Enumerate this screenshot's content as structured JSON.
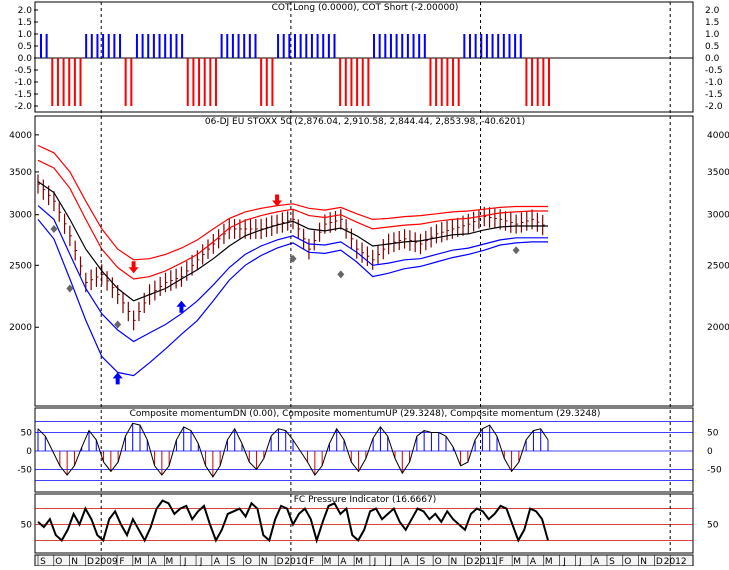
{
  "chart_data": [
    {
      "type": "bar",
      "title": "COT Long (0.0000), COT Short (-2.00000)",
      "ylim": [
        -2,
        2
      ],
      "yticks": [
        "2.0",
        "1.5",
        "1.0",
        "0.5",
        "0.0",
        "-0.5",
        "-1.0",
        "-1.5",
        "-2.0"
      ],
      "series": [
        {
          "name": "COT Long",
          "color": "#0000ff",
          "values": [
            1,
            1,
            0,
            0,
            0,
            0,
            0,
            0,
            1,
            1,
            1,
            1,
            1,
            1,
            1,
            0,
            0,
            1,
            1,
            1,
            1,
            1,
            1,
            1,
            1,
            1,
            0,
            0,
            0,
            0,
            0,
            0,
            1,
            1,
            1,
            1,
            1,
            1,
            1,
            0,
            0,
            0,
            1,
            1,
            1,
            1,
            1,
            1,
            1,
            1,
            1,
            1,
            1,
            0,
            0,
            0,
            0,
            0,
            0,
            1,
            1,
            1,
            1,
            1,
            1,
            1,
            1,
            1,
            1,
            0,
            0,
            0,
            0,
            0,
            0,
            1,
            1,
            1,
            1,
            1,
            1,
            1,
            1,
            1,
            1,
            1,
            0,
            0,
            0,
            0,
            0
          ]
        },
        {
          "name": "COT Short",
          "color": "#ff0000",
          "values": [
            0,
            0,
            -2,
            -2,
            -2,
            -2,
            -2,
            -2,
            0,
            0,
            0,
            0,
            0,
            0,
            0,
            -2,
            -2,
            0,
            0,
            0,
            0,
            0,
            0,
            0,
            0,
            0,
            -2,
            -2,
            -2,
            -2,
            -2,
            -2,
            0,
            0,
            0,
            0,
            0,
            0,
            0,
            -2,
            -2,
            -2,
            0,
            0,
            0,
            0,
            0,
            0,
            0,
            0,
            0,
            0,
            0,
            -2,
            -2,
            -2,
            -2,
            -2,
            -2,
            0,
            0,
            0,
            0,
            0,
            0,
            0,
            0,
            0,
            0,
            -2,
            -2,
            -2,
            -2,
            -2,
            -2,
            0,
            0,
            0,
            0,
            0,
            0,
            0,
            0,
            0,
            0,
            0,
            -2,
            -2,
            -2,
            -2,
            -2
          ]
        }
      ]
    },
    {
      "type": "line",
      "title": "06-DJ EU STOXX 50 (2,876.04, 2,910.58, 2,844.44, 2,853.98, -40.6201)",
      "scale": "log",
      "ylim": [
        1550,
        4100
      ],
      "yticks": [
        2000,
        2500,
        3000,
        3500,
        4000
      ],
      "x": [
        "S",
        "O",
        "N",
        "D",
        "2009",
        "F",
        "M",
        "A",
        "M",
        "J",
        "J",
        "A",
        "S",
        "O",
        "N",
        "D",
        "2010",
        "F",
        "M",
        "A",
        "M",
        "J",
        "J",
        "A",
        "S",
        "O",
        "N",
        "D",
        "2011",
        "F",
        "M",
        "A",
        "M"
      ],
      "series": [
        {
          "name": "price",
          "color": "#000000",
          "values": [
            3350,
            3150,
            2780,
            2350,
            2420,
            2250,
            2050,
            2250,
            2350,
            2400,
            2550,
            2700,
            2850,
            2850,
            2850,
            2900,
            2950,
            2650,
            2900,
            2950,
            2650,
            2550,
            2700,
            2750,
            2700,
            2800,
            2850,
            2900,
            2980,
            2950,
            2900,
            2950,
            2860
          ]
        },
        {
          "name": "moving average",
          "color": "#000000",
          "values": [
            3380,
            3250,
            2950,
            2650,
            2450,
            2300,
            2200,
            2250,
            2300,
            2380,
            2460,
            2560,
            2680,
            2780,
            2840,
            2890,
            2930,
            2850,
            2830,
            2860,
            2780,
            2680,
            2700,
            2720,
            2730,
            2760,
            2790,
            2800,
            2840,
            2870,
            2880,
            2880,
            2880
          ]
        },
        {
          "name": "upper band 1",
          "color": "#ff0000",
          "values": [
            3650,
            3550,
            3300,
            2950,
            2650,
            2480,
            2380,
            2400,
            2450,
            2520,
            2600,
            2720,
            2860,
            2940,
            2990,
            3030,
            3060,
            2990,
            2970,
            3000,
            2920,
            2850,
            2870,
            2890,
            2900,
            2930,
            2950,
            2960,
            2990,
            3020,
            3030,
            3040,
            3040
          ]
        },
        {
          "name": "upper band 2",
          "color": "#ff0000",
          "values": [
            3850,
            3750,
            3500,
            3150,
            2850,
            2650,
            2550,
            2560,
            2600,
            2660,
            2740,
            2850,
            2960,
            3030,
            3070,
            3100,
            3120,
            3070,
            3050,
            3080,
            3010,
            2950,
            2960,
            2980,
            2990,
            3010,
            3030,
            3040,
            3060,
            3080,
            3090,
            3090,
            3090
          ]
        },
        {
          "name": "lower band 1",
          "color": "#0000ff",
          "values": [
            3100,
            2950,
            2600,
            2300,
            2100,
            1980,
            1900,
            1960,
            2020,
            2100,
            2200,
            2330,
            2480,
            2600,
            2680,
            2740,
            2780,
            2700,
            2690,
            2720,
            2620,
            2500,
            2520,
            2550,
            2560,
            2600,
            2640,
            2660,
            2700,
            2740,
            2760,
            2760,
            2760
          ]
        },
        {
          "name": "lower band 2",
          "color": "#0000ff",
          "values": [
            2950,
            2750,
            2380,
            2050,
            1800,
            1700,
            1680,
            1760,
            1850,
            1950,
            2050,
            2200,
            2370,
            2500,
            2590,
            2660,
            2710,
            2620,
            2610,
            2640,
            2530,
            2400,
            2430,
            2470,
            2490,
            2530,
            2570,
            2600,
            2640,
            2690,
            2710,
            2720,
            2720
          ]
        }
      ],
      "markers": {
        "diamonds": [
          [
            1,
            2850
          ],
          [
            2,
            2300
          ],
          [
            5,
            2020
          ],
          [
            16,
            2560
          ],
          [
            19,
            2420
          ],
          [
            30,
            2640
          ]
        ],
        "up_arrows": [
          [
            5,
            1700
          ],
          [
            9,
            2200
          ]
        ],
        "down_arrows": [
          [
            6,
            2430
          ],
          [
            15,
            3090
          ]
        ]
      }
    },
    {
      "type": "bar",
      "title": "Composite momentumDN (0.00), Composite momentumUP (29.3248), Composite momentum (29.3248)",
      "ylim": [
        -100,
        100
      ],
      "yticks": [
        "50",
        "0",
        "-50"
      ],
      "values": [
        60,
        40,
        0,
        -40,
        -65,
        -40,
        10,
        55,
        30,
        -30,
        -55,
        -30,
        40,
        75,
        70,
        30,
        -40,
        -65,
        -40,
        30,
        65,
        55,
        20,
        -40,
        -70,
        -40,
        30,
        60,
        20,
        -30,
        -50,
        -20,
        40,
        60,
        55,
        30,
        0,
        -30,
        -65,
        -40,
        20,
        60,
        30,
        -30,
        -55,
        -20,
        35,
        65,
        40,
        -20,
        -60,
        -30,
        40,
        55,
        50,
        50,
        40,
        10,
        -40,
        -30,
        30,
        60,
        70,
        40,
        -20,
        -55,
        -30,
        30,
        55,
        60,
        30
      ]
    },
    {
      "type": "line",
      "title": "FC Pressure Indicator (16.6667)",
      "ylim": [
        0,
        100
      ],
      "yticks": [
        "50"
      ],
      "values": [
        55,
        45,
        60,
        30,
        20,
        40,
        70,
        50,
        80,
        60,
        30,
        20,
        60,
        75,
        50,
        30,
        60,
        40,
        20,
        45,
        80,
        95,
        90,
        70,
        80,
        85,
        60,
        75,
        85,
        50,
        20,
        40,
        70,
        75,
        80,
        65,
        90,
        80,
        30,
        20,
        60,
        85,
        80,
        50,
        70,
        80,
        60,
        20,
        55,
        85,
        90,
        70,
        80,
        30,
        20,
        40,
        75,
        80,
        60,
        70,
        80,
        55,
        40,
        60,
        80,
        75,
        60,
        70,
        55,
        75,
        60,
        50,
        40,
        70,
        80,
        75,
        60,
        70,
        85,
        80,
        50,
        20,
        40,
        80,
        75,
        60,
        20
      ]
    }
  ],
  "x_axis": {
    "labels": [
      "S",
      "O",
      "N",
      "D",
      "2009",
      "F",
      "M",
      "A",
      "M",
      "J",
      "J",
      "A",
      "S",
      "O",
      "N",
      "D",
      "2010",
      "F",
      "M",
      "A",
      "M",
      "J",
      "J",
      "A",
      "S",
      "O",
      "N",
      "D",
      "2011",
      "F",
      "M",
      "A",
      "M",
      "J",
      "J",
      "A",
      "S",
      "O",
      "N",
      "D",
      "2012"
    ]
  }
}
